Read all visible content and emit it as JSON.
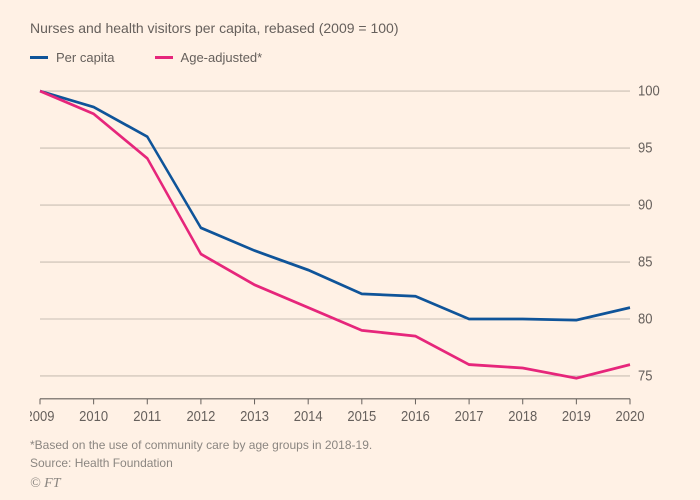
{
  "subtitle": "Nurses and health visitors per capita, rebased (2009 = 100)",
  "legend": [
    {
      "label": "Per capita",
      "color": "#0f5499"
    },
    {
      "label": "Age-adjusted*",
      "color": "#e6267b"
    }
  ],
  "chart": {
    "type": "line",
    "x_domain": [
      2009,
      2020
    ],
    "x_ticks": [
      2009,
      2010,
      2011,
      2012,
      2013,
      2014,
      2015,
      2016,
      2017,
      2018,
      2019,
      2020
    ],
    "y_domain": [
      73,
      101
    ],
    "y_ticks": [
      75,
      80,
      85,
      90,
      95,
      100
    ],
    "grid_color": "#c9bfb5",
    "baseline_color": "#66605c",
    "background_color": "#fff1e5",
    "line_width": 2.5,
    "series": [
      {
        "name": "per_capita",
        "color": "#0f5499",
        "points": [
          [
            2009,
            100.0
          ],
          [
            2010,
            98.6
          ],
          [
            2011,
            96.0
          ],
          [
            2012,
            88.0
          ],
          [
            2013,
            86.0
          ],
          [
            2014,
            84.3
          ],
          [
            2015,
            82.2
          ],
          [
            2016,
            82.0
          ],
          [
            2017,
            80.0
          ],
          [
            2018,
            80.0
          ],
          [
            2019,
            79.9
          ],
          [
            2020,
            81.0
          ]
        ]
      },
      {
        "name": "age_adjusted",
        "color": "#e6267b",
        "points": [
          [
            2009,
            100.0
          ],
          [
            2010,
            98.0
          ],
          [
            2011,
            94.1
          ],
          [
            2012,
            85.7
          ],
          [
            2013,
            83.0
          ],
          [
            2014,
            81.0
          ],
          [
            2015,
            79.0
          ],
          [
            2016,
            78.5
          ],
          [
            2017,
            76.0
          ],
          [
            2018,
            75.7
          ],
          [
            2019,
            74.8
          ],
          [
            2020,
            76.0
          ]
        ]
      }
    ]
  },
  "footnote": "*Based on the use of community care by age groups in 2018-19.",
  "source": "Source: Health Foundation",
  "brand": "© FT"
}
